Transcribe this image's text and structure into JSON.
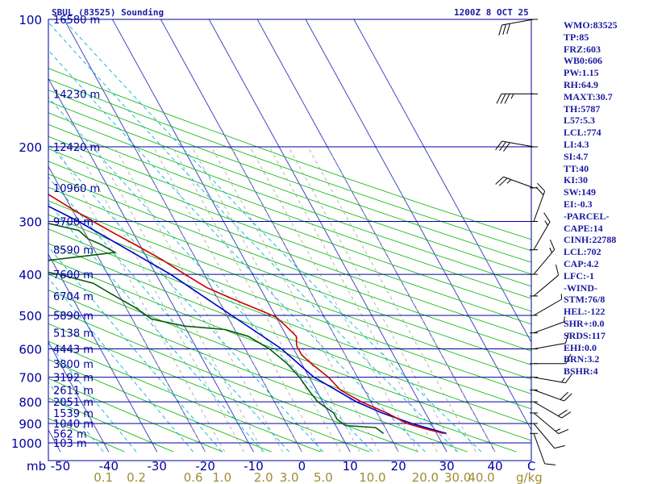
{
  "header": {
    "station": "SBUL (83525) Sounding",
    "time": "1200Z  8 OCT 25"
  },
  "indices": [
    "WMO:83525",
    "TP:85",
    "FRZ:603",
    "WB0:606",
    "PW:1.15",
    "RH:64.9",
    "MAXT:30.7",
    "TH:5787",
    "L57:5.3",
    "LCL:774",
    "LI:4.3",
    "SI:4.7",
    "TT:40",
    "KI:30",
    "SW:149",
    "EI:-0.3",
    "-PARCEL-",
    "CAPE:14",
    "CINH:22788",
    "LCL:702",
    "CAP:4.2",
    "LFC:-1",
    "-WIND-",
    "STM:76/8",
    "HEL:-122",
    "SHR+:0.0",
    "SRDS:117",
    "EHI:0.0",
    "BRN:3.2",
    "BSHR:4"
  ],
  "colors": {
    "isobar": "#0000a0",
    "isotherm": "#4646c8",
    "dry_adiabat": "#00b400",
    "moist_adiabat": "#a0a0a0",
    "mixing_ratio": "#00b4dc",
    "temperature": "#c80000",
    "dewpoint": "#0a5a0a",
    "parcel": "#0000c8",
    "text": "#1a1aa0",
    "wr_labels": "#a08c32",
    "wind": "#000000"
  },
  "chart_data": {
    "type": "skew-t log-p sounding",
    "pressure_labels": [
      "100",
      "200",
      "300",
      "400",
      "500",
      "600",
      "700",
      "800",
      "900",
      "1000"
    ],
    "pressure_unit_label": "mb",
    "isobar_levels": [
      100,
      200,
      300,
      400,
      500,
      600,
      700,
      800,
      900,
      1000
    ],
    "p_range": [
      100,
      1050
    ],
    "height_labels": [
      {
        "p": 100,
        "label": "16580 m"
      },
      {
        "p": 150,
        "label": "14230 m"
      },
      {
        "p": 200,
        "label": "12420 m"
      },
      {
        "p": 250,
        "label": "10960 m"
      },
      {
        "p": 300,
        "label": "9700 m"
      },
      {
        "p": 350,
        "label": "8590 m"
      },
      {
        "p": 400,
        "label": "7600 m"
      },
      {
        "p": 450,
        "label": "6704 m"
      },
      {
        "p": 500,
        "label": "5890 m"
      },
      {
        "p": 550,
        "label": "5138 m"
      },
      {
        "p": 600,
        "label": "4443 m"
      },
      {
        "p": 650,
        "label": "3800 m"
      },
      {
        "p": 700,
        "label": "3192 m"
      },
      {
        "p": 750,
        "label": "2611 m"
      },
      {
        "p": 800,
        "label": "2051 m"
      },
      {
        "p": 850,
        "label": "1539 m"
      },
      {
        "p": 900,
        "label": "1040 m"
      },
      {
        "p": 950,
        "label": "562 m"
      },
      {
        "p": 1000,
        "label": "103 m"
      }
    ],
    "temperature_axis": {
      "ticks": [
        -50,
        -40,
        -30,
        -20,
        -10,
        0,
        10,
        20,
        30,
        40
      ],
      "labels": [
        "-50",
        "-40",
        "-30",
        "-20",
        "-10",
        "0",
        "10",
        "20",
        "30",
        "40"
      ],
      "unit": "C"
    },
    "mixing_ratio_axis": {
      "values": [
        0.1,
        0.2,
        0.6,
        1.0,
        2.0,
        3.0,
        5.0,
        10.0,
        20.0,
        30.0,
        40.0
      ],
      "labels": [
        "0.1",
        "0.2",
        "0.6",
        "1.0",
        "2.0",
        "3.0",
        "5.0",
        "10.0",
        "20.0",
        "30.0",
        "40.0"
      ],
      "unit": "g/kg"
    },
    "temperature": [
      [
        950,
        31.5
      ],
      [
        925,
        28
      ],
      [
        900,
        25
      ],
      [
        850,
        22
      ],
      [
        800,
        18
      ],
      [
        750,
        15
      ],
      [
        700,
        14
      ],
      [
        650,
        12
      ],
      [
        620,
        11
      ],
      [
        590,
        11
      ],
      [
        560,
        12
      ],
      [
        530,
        11
      ],
      [
        505,
        10
      ],
      [
        490,
        8
      ],
      [
        470,
        5
      ],
      [
        450,
        2
      ],
      [
        430,
        -1
      ],
      [
        400,
        -4
      ],
      [
        370,
        -7
      ],
      [
        340,
        -11
      ],
      [
        320,
        -14
      ],
      [
        300,
        -17
      ],
      [
        280,
        -20
      ],
      [
        260,
        -23
      ],
      [
        240,
        -27
      ],
      [
        220,
        -32
      ],
      [
        200,
        -36
      ],
      [
        180,
        -42
      ],
      [
        160,
        -48
      ],
      [
        150,
        -53
      ],
      [
        140,
        -58
      ],
      [
        130,
        -63
      ],
      [
        120,
        -66
      ],
      [
        110,
        -68
      ],
      [
        100,
        -70
      ]
    ],
    "dewpoint": [
      [
        950,
        19
      ],
      [
        920,
        18
      ],
      [
        910,
        12
      ],
      [
        880,
        11
      ],
      [
        850,
        11
      ],
      [
        800,
        9
      ],
      [
        760,
        8.5
      ],
      [
        700,
        8
      ],
      [
        650,
        7
      ],
      [
        600,
        5
      ],
      [
        560,
        2
      ],
      [
        540,
        -2
      ],
      [
        530,
        -10
      ],
      [
        510,
        -16
      ],
      [
        480,
        -18
      ],
      [
        440,
        -22
      ],
      [
        420,
        -24
      ],
      [
        400,
        -30
      ],
      [
        390,
        -35
      ],
      [
        380,
        -36
      ],
      [
        370,
        -30
      ],
      [
        355,
        -16
      ],
      [
        340,
        -18
      ],
      [
        330,
        -20
      ],
      [
        315,
        -21
      ],
      [
        300,
        -28
      ],
      [
        290,
        -30
      ],
      [
        280,
        -26
      ],
      [
        272,
        -37
      ],
      [
        265,
        -30
      ],
      [
        255,
        -33
      ],
      [
        250,
        -28
      ],
      [
        245,
        -30
      ],
      [
        240,
        -32
      ],
      [
        220,
        -40
      ],
      [
        210,
        -50
      ],
      [
        200,
        -60
      ],
      [
        195,
        -62
      ],
      [
        185,
        -60
      ],
      [
        175,
        -59
      ],
      [
        170,
        -56
      ],
      [
        165,
        -63
      ],
      [
        160,
        -69
      ],
      [
        155,
        -66
      ],
      [
        150,
        -68
      ],
      [
        140,
        -71
      ],
      [
        125,
        -73
      ],
      [
        115,
        -75
      ],
      [
        100,
        -77
      ]
    ],
    "parcel": [
      [
        950,
        32
      ],
      [
        900,
        26
      ],
      [
        850,
        21
      ],
      [
        800,
        17
      ],
      [
        700,
        11
      ],
      [
        600,
        7.5
      ],
      [
        500,
        1
      ],
      [
        400,
        -7
      ],
      [
        300,
        -20
      ],
      [
        250,
        -30
      ],
      [
        200,
        -44
      ],
      [
        150,
        -64
      ],
      [
        115,
        -80
      ],
      [
        100,
        -87
      ]
    ],
    "winds": [
      [
        950,
        160,
        10
      ],
      [
        900,
        140,
        10
      ],
      [
        850,
        130,
        15
      ],
      [
        800,
        120,
        20
      ],
      [
        750,
        110,
        20
      ],
      [
        700,
        100,
        15
      ],
      [
        650,
        90,
        10
      ],
      [
        600,
        80,
        10
      ],
      [
        550,
        70,
        5
      ],
      [
        500,
        60,
        5
      ],
      [
        450,
        50,
        10
      ],
      [
        400,
        40,
        15
      ],
      [
        350,
        30,
        15
      ],
      [
        300,
        20,
        20
      ],
      [
        250,
        290,
        25
      ],
      [
        200,
        280,
        30
      ],
      [
        150,
        270,
        35
      ],
      [
        100,
        260,
        30
      ]
    ],
    "wind_unit": "knots"
  }
}
